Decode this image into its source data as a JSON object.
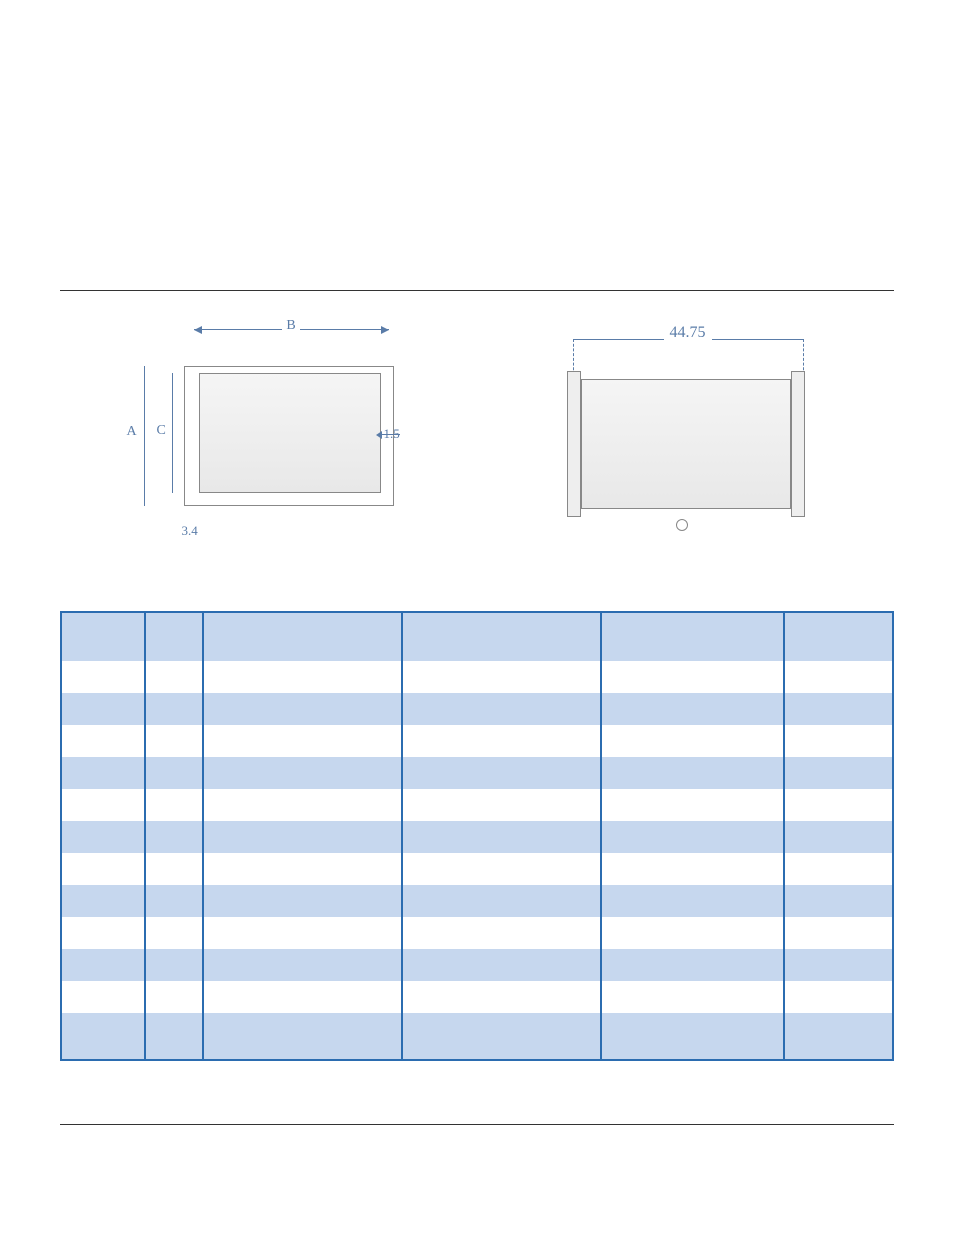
{
  "diagram": {
    "side": {
      "dim_b_label": "B",
      "dim_a_label": "A",
      "dim_c_label": "C",
      "dim_depth_label": "1.5",
      "dim_base_label": "3.4"
    },
    "front": {
      "dim_width_label": "44.75"
    },
    "colors": {
      "dim_line": "#5a7ca8",
      "box_stroke": "#888888",
      "box_fill_light": "#f5f5f5",
      "box_fill_dark": "#e8e8e8"
    }
  },
  "table": {
    "colors": {
      "border": "#2b6cb0",
      "header_bg": "#c6d7ee",
      "row_alt_bg": "#c6d7ee",
      "row_bg": "#ffffff"
    },
    "columns": [
      "",
      "",
      "",
      "",
      "",
      ""
    ],
    "rows": [
      [
        "",
        "",
        "",
        "",
        "",
        ""
      ],
      [
        "",
        "",
        "",
        "",
        "",
        ""
      ],
      [
        "",
        "",
        "",
        "",
        "",
        ""
      ],
      [
        "",
        "",
        "",
        "",
        "",
        ""
      ],
      [
        "",
        "",
        "",
        "",
        "",
        ""
      ],
      [
        "",
        "",
        "",
        "",
        "",
        ""
      ],
      [
        "",
        "",
        "",
        "",
        "",
        ""
      ],
      [
        "",
        "",
        "",
        "",
        "",
        ""
      ],
      [
        "",
        "",
        "",
        "",
        "",
        ""
      ],
      [
        "",
        "",
        "",
        "",
        "",
        ""
      ],
      [
        "",
        "",
        "",
        "",
        "",
        ""
      ],
      [
        "",
        "",
        "",
        "",
        "",
        ""
      ]
    ]
  }
}
